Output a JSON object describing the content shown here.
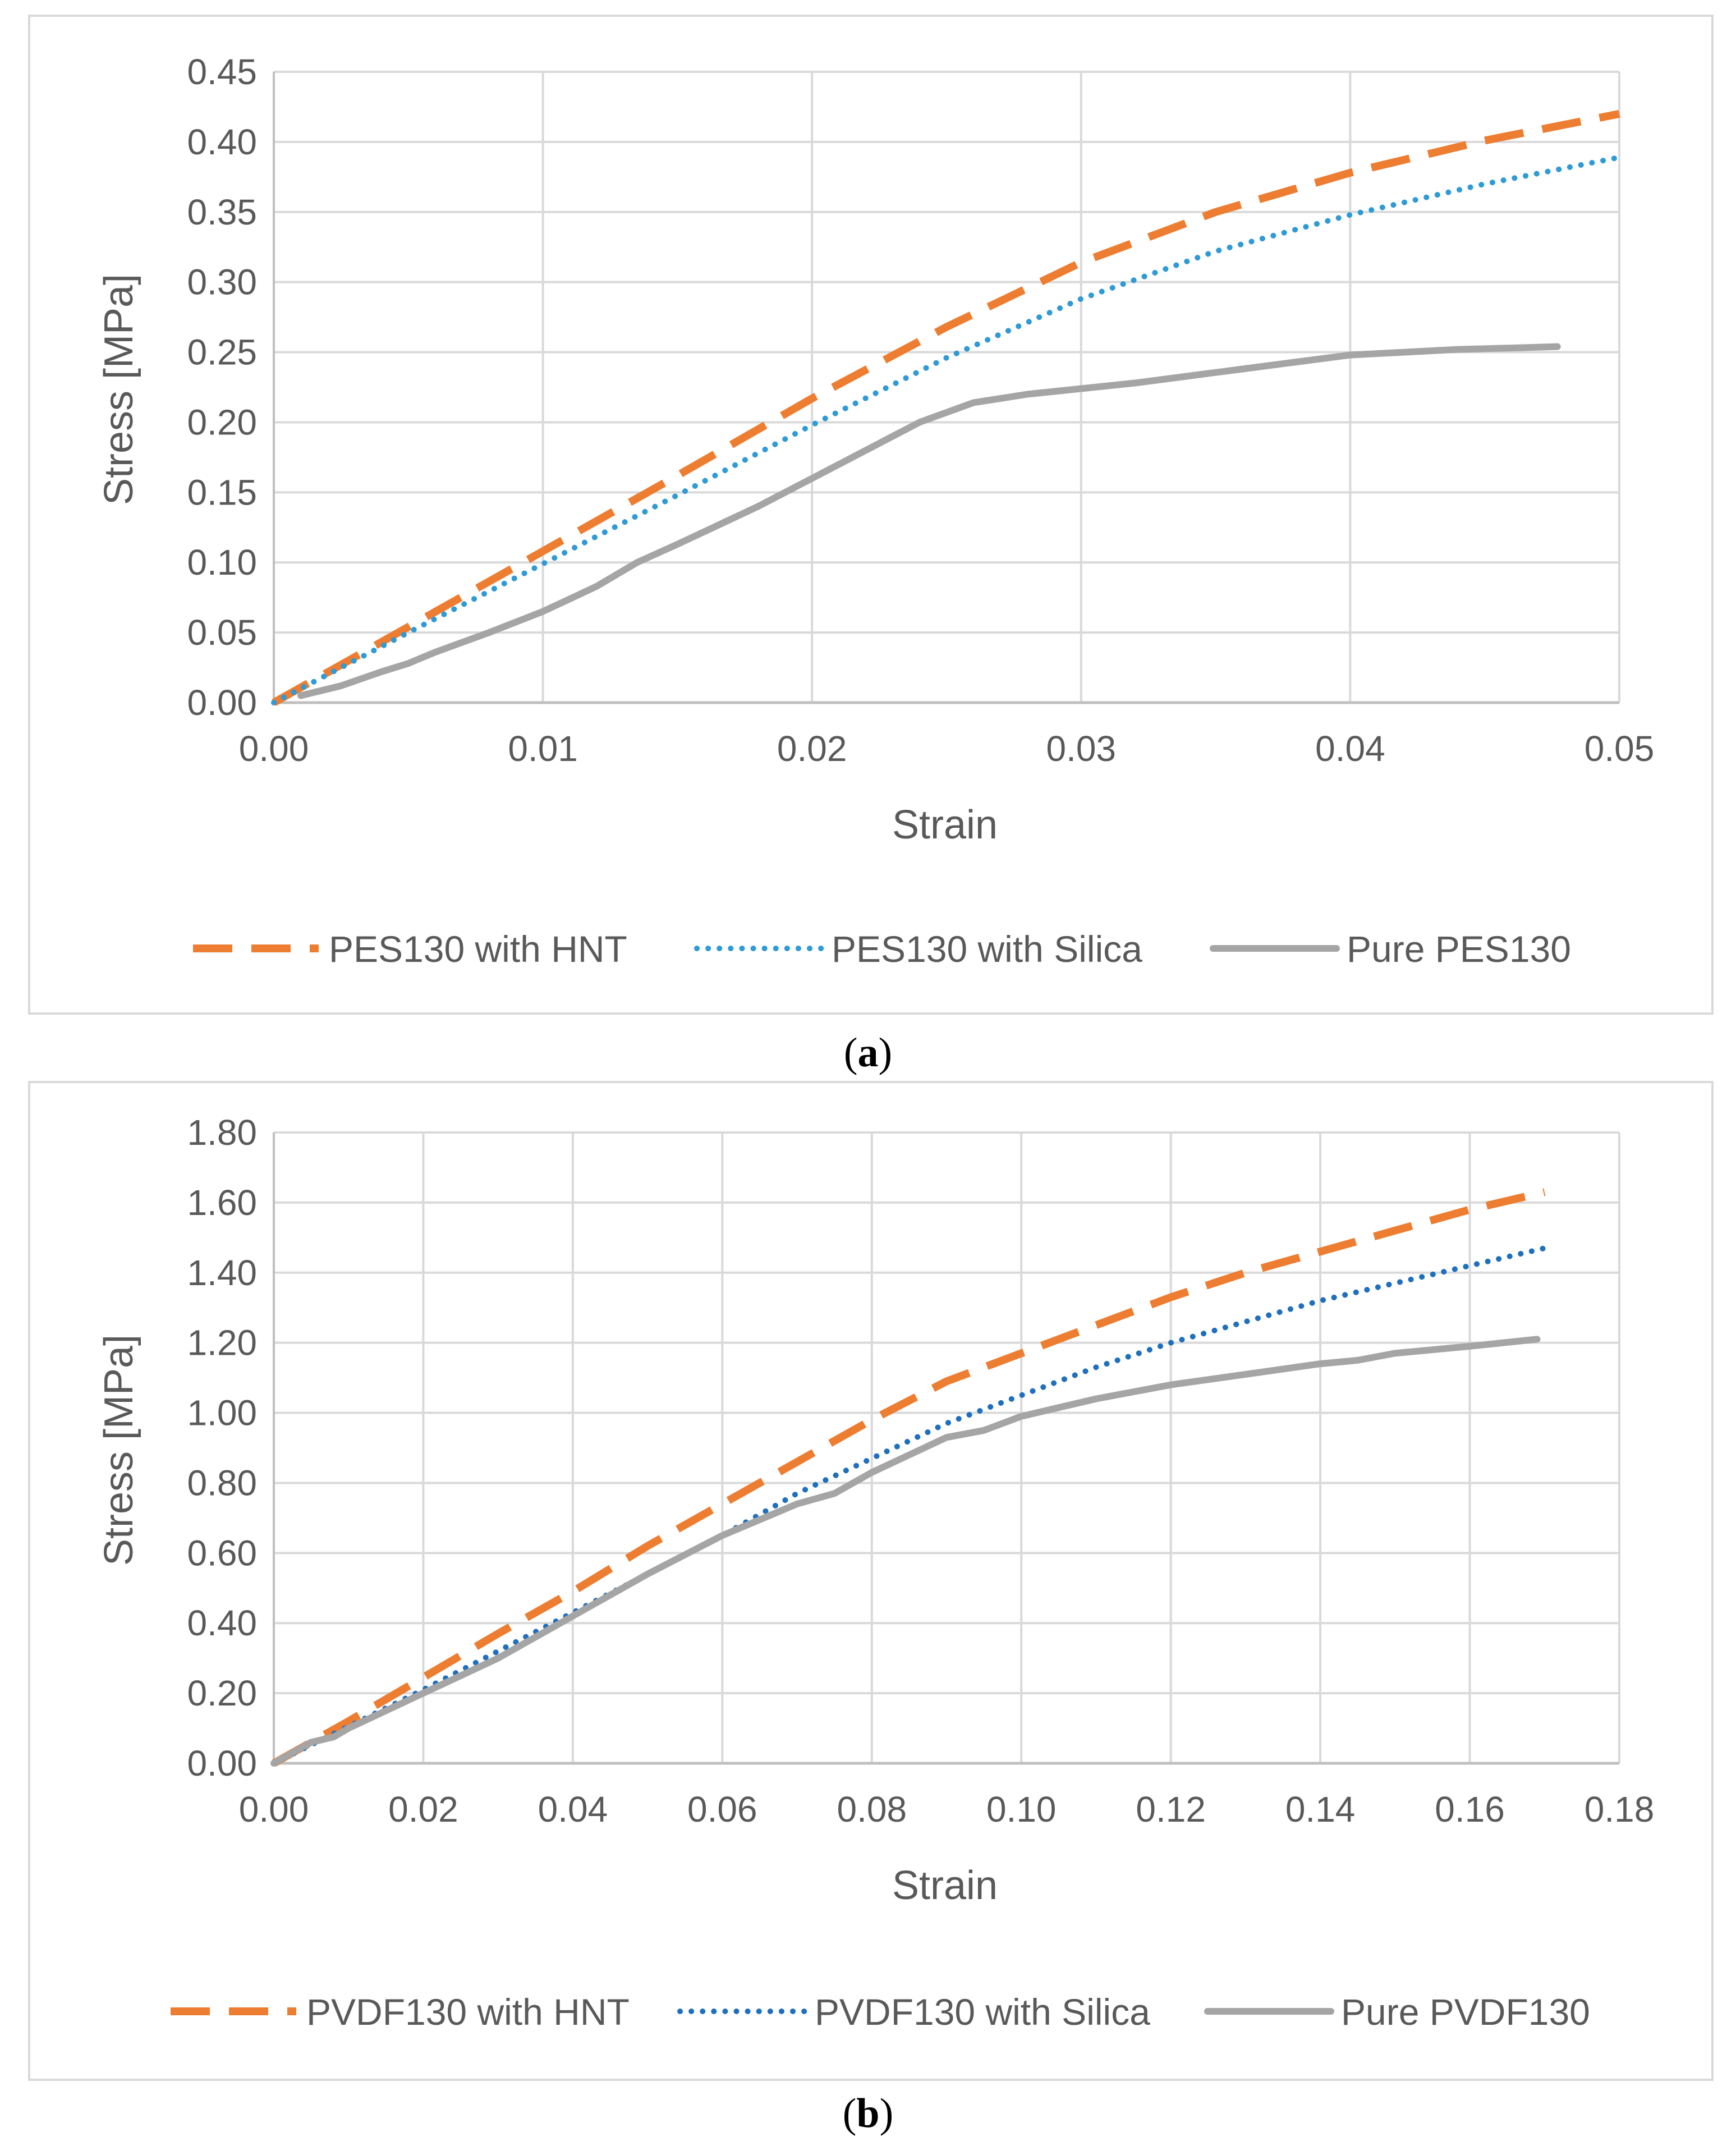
{
  "colors": {
    "orange": "#ED7D31",
    "light_blue": "#2E9BD6",
    "dark_blue": "#1F6FBF",
    "gray": "#A5A5A5",
    "grid": "#D9D9D9",
    "axis": "#BFBFBF",
    "frame": "#D9D9D9"
  },
  "chart_data": [
    {
      "type": "line",
      "caption_open": "(",
      "caption_letter": "a",
      "caption_close": ")",
      "xlabel": "Strain",
      "ylabel": "Stress [MPa]",
      "xlim": [
        0,
        0.05
      ],
      "ylim": [
        0,
        0.45
      ],
      "xticks": [
        "0.00",
        "0.01",
        "0.02",
        "0.03",
        "0.04",
        "0.05"
      ],
      "yticks": [
        "0.00",
        "0.05",
        "0.10",
        "0.15",
        "0.20",
        "0.25",
        "0.30",
        "0.35",
        "0.40",
        "0.45"
      ],
      "grid": true,
      "legend_position": "bottom",
      "series": [
        {
          "name": "PES130 with HNT",
          "style": "dashed",
          "color": "#ED7D31",
          "x": [
            0,
            0.005,
            0.01,
            0.015,
            0.02,
            0.025,
            0.03,
            0.035,
            0.04,
            0.045,
            0.05
          ],
          "y": [
            0,
            0.054,
            0.108,
            0.162,
            0.217,
            0.268,
            0.314,
            0.35,
            0.378,
            0.401,
            0.42
          ]
        },
        {
          "name": "PES130 with Silica",
          "style": "dotted",
          "color": "#2E9BD6",
          "x": [
            0,
            0.005,
            0.01,
            0.015,
            0.02,
            0.025,
            0.03,
            0.035,
            0.04,
            0.045,
            0.05
          ],
          "y": [
            0,
            0.05,
            0.099,
            0.148,
            0.198,
            0.246,
            0.288,
            0.322,
            0.348,
            0.37,
            0.389
          ]
        },
        {
          "name": "Pure PES130",
          "style": "solid",
          "color": "#A5A5A5",
          "x": [
            0.001,
            0.0025,
            0.004,
            0.005,
            0.006,
            0.008,
            0.01,
            0.012,
            0.0135,
            0.015,
            0.018,
            0.02,
            0.022,
            0.024,
            0.026,
            0.028,
            0.03,
            0.032,
            0.034,
            0.036,
            0.038,
            0.04,
            0.042,
            0.044,
            0.046,
            0.0477
          ],
          "y": [
            0.005,
            0.012,
            0.022,
            0.028,
            0.036,
            0.05,
            0.065,
            0.083,
            0.1,
            0.113,
            0.14,
            0.16,
            0.18,
            0.2,
            0.214,
            0.22,
            0.224,
            0.228,
            0.233,
            0.238,
            0.243,
            0.248,
            0.25,
            0.252,
            0.253,
            0.254
          ]
        }
      ]
    },
    {
      "type": "line",
      "caption_open": "(",
      "caption_letter": "b",
      "caption_close": ")",
      "xlabel": "Strain",
      "ylabel": "Stress [MPa]",
      "xlim": [
        0,
        0.18
      ],
      "ylim": [
        0,
        1.8
      ],
      "xticks": [
        "0.00",
        "0.02",
        "0.04",
        "0.06",
        "0.08",
        "0.10",
        "0.12",
        "0.14",
        "0.16",
        "0.18"
      ],
      "yticks": [
        "0.00",
        "0.20",
        "0.40",
        "0.60",
        "0.80",
        "1.00",
        "1.20",
        "1.40",
        "1.60",
        "1.80"
      ],
      "grid": true,
      "legend_position": "bottom",
      "series": [
        {
          "name": "PVDF130 with HNT",
          "style": "dashed",
          "color": "#ED7D31",
          "x": [
            0,
            0.01,
            0.02,
            0.03,
            0.04,
            0.05,
            0.06,
            0.07,
            0.08,
            0.09,
            0.1,
            0.11,
            0.12,
            0.13,
            0.14,
            0.15,
            0.16,
            0.17
          ],
          "y": [
            0,
            0.12,
            0.245,
            0.37,
            0.49,
            0.62,
            0.74,
            0.86,
            0.98,
            1.09,
            1.17,
            1.25,
            1.33,
            1.4,
            1.46,
            1.52,
            1.58,
            1.63
          ]
        },
        {
          "name": "PVDF130 with Silica",
          "style": "dotted",
          "color": "#1F6FBF",
          "x": [
            0,
            0.01,
            0.02,
            0.03,
            0.04,
            0.05,
            0.06,
            0.07,
            0.08,
            0.09,
            0.1,
            0.11,
            0.12,
            0.13,
            0.14,
            0.15,
            0.16,
            0.17
          ],
          "y": [
            0,
            0.105,
            0.21,
            0.32,
            0.43,
            0.54,
            0.65,
            0.77,
            0.87,
            0.97,
            1.05,
            1.13,
            1.2,
            1.26,
            1.32,
            1.37,
            1.42,
            1.47
          ]
        },
        {
          "name": "Pure PVDF130",
          "style": "solid",
          "color": "#A5A5A5",
          "x": [
            0,
            0.005,
            0.008,
            0.01,
            0.015,
            0.02,
            0.025,
            0.03,
            0.035,
            0.04,
            0.05,
            0.06,
            0.07,
            0.075,
            0.08,
            0.085,
            0.09,
            0.095,
            0.1,
            0.11,
            0.12,
            0.13,
            0.14,
            0.145,
            0.15,
            0.16,
            0.169
          ],
          "y": [
            0,
            0.06,
            0.075,
            0.1,
            0.15,
            0.2,
            0.25,
            0.3,
            0.36,
            0.42,
            0.54,
            0.65,
            0.74,
            0.77,
            0.83,
            0.88,
            0.93,
            0.95,
            0.99,
            1.04,
            1.08,
            1.11,
            1.14,
            1.15,
            1.17,
            1.19,
            1.21
          ]
        }
      ]
    }
  ]
}
